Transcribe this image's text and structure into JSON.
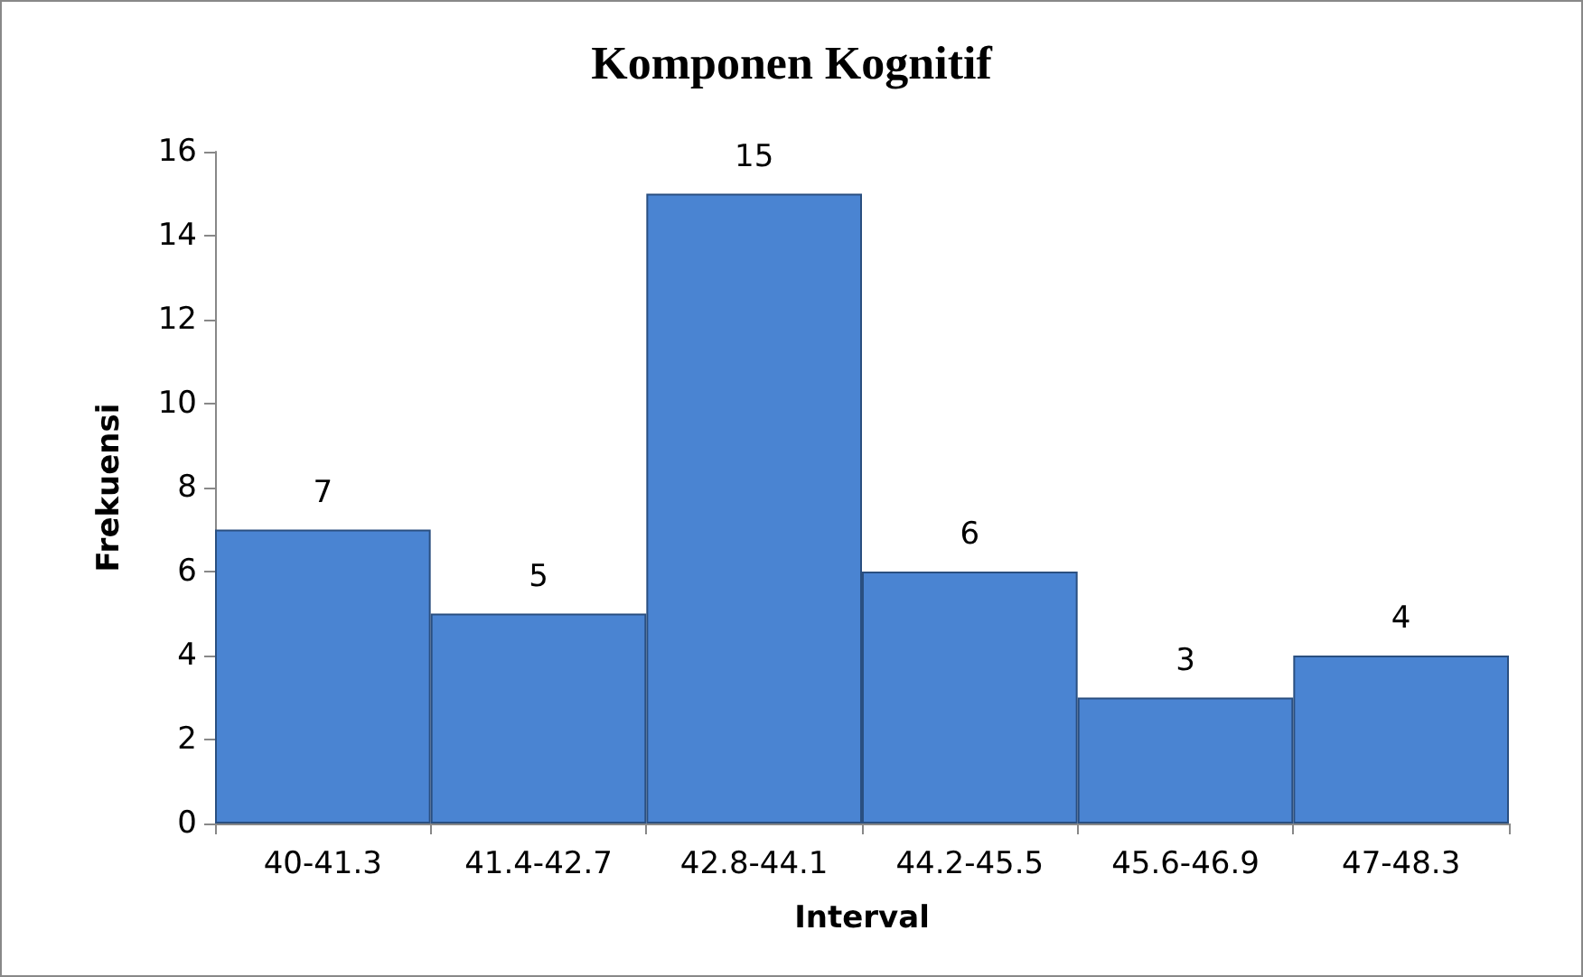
{
  "chart_data": {
    "type": "bar",
    "title": "Komponen Kognitif",
    "xlabel": "Interval",
    "ylabel": "Frekuensi",
    "categories": [
      "40-41.3",
      "41.4-42.7",
      "42.8-44.1",
      "44.2-45.5",
      "45.6-46.9",
      "47-48.3"
    ],
    "values": [
      7,
      5,
      15,
      6,
      3,
      4
    ],
    "color": "#4a84d2",
    "ylim": [
      0,
      16
    ],
    "yticks": [
      0,
      2,
      4,
      6,
      8,
      10,
      12,
      14,
      16
    ],
    "grid": false,
    "data_labels": true
  }
}
